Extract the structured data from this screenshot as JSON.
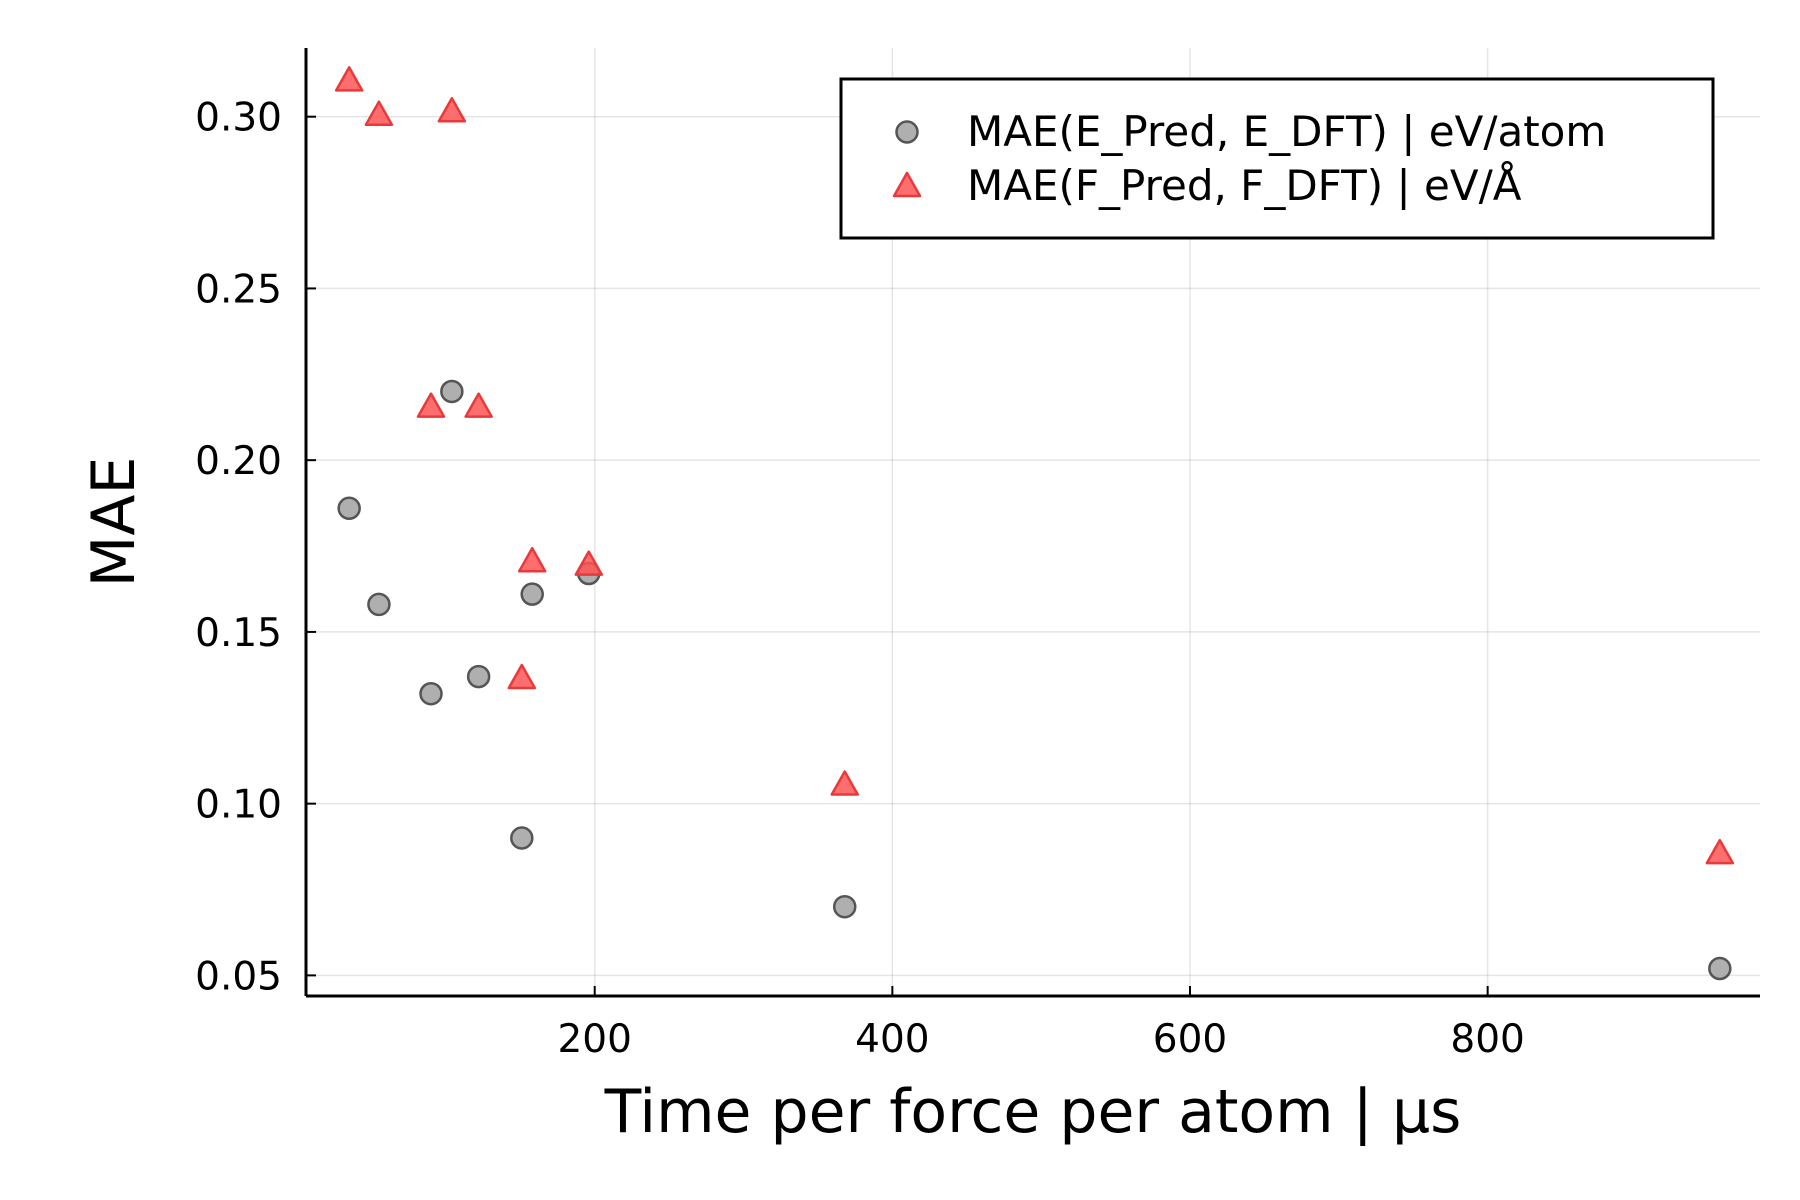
{
  "chart_data": {
    "type": "scatter",
    "xlabel": "Time per force per atom | μs",
    "ylabel": "MAE",
    "xlim": [
      6,
      983
    ],
    "ylim": [
      0.044,
      0.32
    ],
    "x_ticks": [
      200,
      400,
      600,
      800
    ],
    "y_ticks": [
      0.05,
      0.1,
      0.15,
      0.2,
      0.25,
      0.3
    ],
    "x_tick_labels": [
      "200",
      "400",
      "600",
      "800"
    ],
    "y_tick_labels": [
      "0.05",
      "0.10",
      "0.15",
      "0.20",
      "0.25",
      "0.30"
    ],
    "grid": true,
    "legend_position": "top-right",
    "series": [
      {
        "name": "MAE(E_Pred, E_DFT) | eV/atom",
        "marker": "circle",
        "color": "#a6a6a6",
        "edge_color": "#555555",
        "points": [
          {
            "x": 35,
            "y": 0.186
          },
          {
            "x": 55,
            "y": 0.158
          },
          {
            "x": 90,
            "y": 0.132
          },
          {
            "x": 104,
            "y": 0.22
          },
          {
            "x": 122,
            "y": 0.137
          },
          {
            "x": 151,
            "y": 0.09
          },
          {
            "x": 158,
            "y": 0.161
          },
          {
            "x": 196,
            "y": 0.167
          },
          {
            "x": 368,
            "y": 0.07
          },
          {
            "x": 956,
            "y": 0.052
          }
        ]
      },
      {
        "name": "MAE(F_Pred, F_DFT) | eV/Å",
        "marker": "triangle",
        "color": "#ff5555",
        "edge_color": "#e83a3a",
        "points": [
          {
            "x": 35,
            "y": 0.31
          },
          {
            "x": 55,
            "y": 0.3
          },
          {
            "x": 90,
            "y": 0.215
          },
          {
            "x": 104,
            "y": 0.301
          },
          {
            "x": 122,
            "y": 0.215
          },
          {
            "x": 151,
            "y": 0.136
          },
          {
            "x": 158,
            "y": 0.17
          },
          {
            "x": 196,
            "y": 0.169
          },
          {
            "x": 368,
            "y": 0.105
          },
          {
            "x": 956,
            "y": 0.085
          }
        ]
      }
    ]
  }
}
